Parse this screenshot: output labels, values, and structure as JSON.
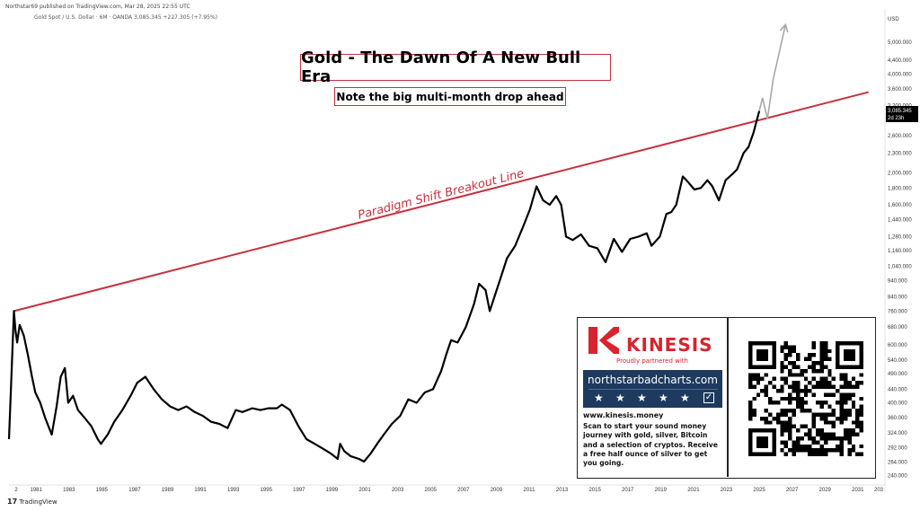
{
  "header": {
    "published_by": "Northstar69 published on TradingView.com, Mar 28, 2025 22:55 UTC",
    "symbol_line": "Gold Spot / U.S. Dollar · 6M · OANDA  3,085.345  +227.305 (+7.95%)"
  },
  "annotations": {
    "title": "Gold - The Dawn Of A New Bull Era",
    "subtitle": "Note the big multi-month drop ahead",
    "line_label": "Paradigm Shift Breakout Line",
    "price_tag": "3,085.345",
    "time_tag": "2d 23h"
  },
  "footer": {
    "logo_text": "TradingView",
    "tv_mark": "17"
  },
  "ad": {
    "brand": "KINESIS",
    "partner": "Proudly partnered with",
    "partner_site": "northstarbadcharts.com",
    "website": "www.kinesis.money",
    "blurb": "Scan to start your sound money journey with gold, silver, Bitcoin and a selection of cryptos. Receive a free half ounce of silver to get you going.",
    "star_glyph": "★",
    "check_glyph": "✓"
  },
  "colors": {
    "price_line": "#000000",
    "breakout_line": "#c8303c",
    "projection": "#a8a8a8",
    "brand_red": "#d9232e",
    "ad_navy": "#1e3a5f"
  },
  "chart_data": {
    "type": "line",
    "y_scale": "log",
    "currency": "USD",
    "x_ticks": [
      "2",
      "1981",
      "1983",
      "1985",
      "1987",
      "1989",
      "1991",
      "1993",
      "1995",
      "1997",
      "1999",
      "2001",
      "2003",
      "2005",
      "2007",
      "2009",
      "2011",
      "2013",
      "2015",
      "2017",
      "2019",
      "2021",
      "2023",
      "2025",
      "2027",
      "2029",
      "2031",
      "203"
    ],
    "y_ticks": [
      "5,000.000",
      "4,400.000",
      "4,000.000",
      "3,600.000",
      "3,200.000",
      "2,600.000",
      "2,300.000",
      "2,000.000",
      "1,800.000",
      "1,600.000",
      "1,440.000",
      "1,280.000",
      "1,160.000",
      "1,040.000",
      "940.000",
      "840.000",
      "760.000",
      "680.000",
      "600.000",
      "540.000",
      "490.000",
      "440.000",
      "400.000",
      "360.000",
      "324.000",
      "292.000",
      "264.000",
      "240.000"
    ],
    "xlim": [
      1979.6,
      2032.9
    ],
    "ylim": [
      225,
      6300
    ],
    "series": [
      {
        "x": [
          1979.6,
          1979.75,
          1979.9,
          1980.0,
          1980.1,
          1980.25,
          1980.5,
          1980.75,
          1981.0,
          1981.2,
          1981.5,
          1981.8,
          1982.2,
          1982.5,
          1982.75,
          1983.0,
          1983.2,
          1983.5,
          1983.8,
          1984.2,
          1984.6,
          1985.0,
          1985.2,
          1985.6,
          1986.0,
          1986.5,
          1987.0,
          1987.4,
          1987.9,
          1988.4,
          1988.9,
          1989.4,
          1989.9,
          1990.4,
          1990.9,
          1991.4,
          1991.9,
          1992.4,
          1992.9,
          1993.4,
          1993.8,
          1994.4,
          1994.9,
          1995.4,
          1995.9,
          1996.2,
          1996.7,
          1997.2,
          1997.7,
          1998.2,
          1998.7,
          1999.2,
          1999.6,
          1999.75,
          2000.0,
          2000.4,
          2000.9,
          2001.2,
          2001.6,
          2002.0,
          2002.4,
          2002.9,
          2003.4,
          2003.9,
          2004.4,
          2004.9,
          2005.4,
          2005.9,
          2006.2,
          2006.5,
          2006.9,
          2007.4,
          2007.9,
          2008.2,
          2008.6,
          2008.85,
          2009.4,
          2009.9,
          2010.4,
          2010.9,
          2011.3,
          2011.7,
          2012.1,
          2012.5,
          2012.9,
          2013.2,
          2013.5,
          2013.9,
          2014.4,
          2014.9,
          2015.4,
          2015.9,
          2016.4,
          2016.9,
          2017.4,
          2017.9,
          2018.4,
          2018.7,
          2019.2,
          2019.6,
          2019.9,
          2020.2,
          2020.6,
          2020.9,
          2021.3,
          2021.7,
          2022.1,
          2022.4,
          2022.8,
          2023.2,
          2023.6,
          2023.9,
          2024.3,
          2024.6,
          2024.9,
          2025.25
        ],
        "y": [
          310,
          480,
          760,
          660,
          610,
          690,
          640,
          560,
          480,
          430,
          400,
          360,
          320,
          390,
          480,
          510,
          400,
          420,
          380,
          360,
          340,
          310,
          300,
          320,
          350,
          380,
          420,
          460,
          480,
          440,
          410,
          390,
          380,
          390,
          375,
          365,
          350,
          345,
          335,
          380,
          375,
          385,
          380,
          385,
          385,
          395,
          380,
          340,
          310,
          300,
          290,
          280,
          270,
          300,
          285,
          275,
          270,
          265,
          280,
          300,
          320,
          345,
          365,
          410,
          400,
          430,
          440,
          500,
          560,
          620,
          610,
          680,
          800,
          920,
          880,
          760,
          920,
          1100,
          1200,
          1380,
          1550,
          1820,
          1650,
          1600,
          1700,
          1600,
          1280,
          1250,
          1300,
          1200,
          1180,
          1070,
          1260,
          1150,
          1260,
          1280,
          1310,
          1200,
          1280,
          1500,
          1520,
          1600,
          1950,
          1880,
          1780,
          1800,
          1900,
          1820,
          1650,
          1900,
          1980,
          2050,
          2300,
          2400,
          2650,
          3085
        ]
      }
    ],
    "breakout_line": {
      "x": [
        1979.9,
        2031.9
      ],
      "y": [
        760,
        3520
      ]
    },
    "projection": {
      "x": [
        2025.25,
        2025.45,
        2025.75,
        2026.1,
        2026.85
      ],
      "y": [
        3085,
        3380,
        2920,
        3850,
        5650
      ]
    }
  }
}
